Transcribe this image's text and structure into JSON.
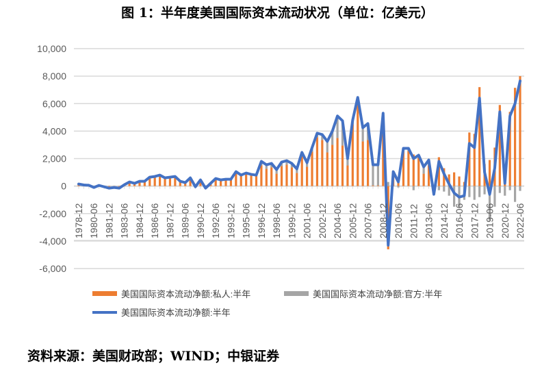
{
  "chart_data": {
    "type": "bar",
    "title": "图 1：半年度美国国际资本流动状况（单位：亿美元）",
    "xlabel": "",
    "ylabel": "",
    "ylim": [
      -6000,
      10000
    ],
    "yticks": [
      "10,000",
      "8,000",
      "6,000",
      "4,000",
      "2,000",
      "0",
      "-2,000",
      "-4,000",
      "-6,000"
    ],
    "ytick_values": [
      10000,
      8000,
      6000,
      4000,
      2000,
      0,
      -2000,
      -4000,
      -6000
    ],
    "grid": true,
    "legend_position": "bottom",
    "xtick_labels": [
      "1978-12",
      "1980-06",
      "1981-12",
      "1983-06",
      "1984-12",
      "1986-06",
      "1987-12",
      "1989-06",
      "1990-12",
      "1992-06",
      "1993-12",
      "1995-06",
      "1996-12",
      "1998-06",
      "1999-12",
      "2001-06",
      "2002-12",
      "2004-06",
      "2005-12",
      "2007-06",
      "2008-12",
      "2010-06",
      "2011-12",
      "2013-06",
      "2014-12",
      "2016-06",
      "2017-12",
      "2019-06",
      "2020-12",
      "2022-06"
    ],
    "n_periods": 88,
    "series": [
      {
        "name": "美国国际资本流动净额:私人:半年",
        "type": "bar",
        "color": "#ED7D31",
        "values": [
          150,
          80,
          60,
          -100,
          50,
          -50,
          -150,
          -100,
          -150,
          100,
          300,
          200,
          300,
          300,
          600,
          650,
          750,
          550,
          600,
          650,
          300,
          200,
          550,
          -100,
          400,
          -200,
          150,
          500,
          400,
          450,
          450,
          1000,
          750,
          900,
          800,
          750,
          1500,
          1250,
          1350,
          900,
          1450,
          1550,
          1350,
          950,
          2150,
          1400,
          2500,
          3550,
          3350,
          2450,
          3000,
          3500,
          2950,
          1500,
          4500,
          6150,
          3250,
          3350,
          50,
          50,
          3800,
          -4600,
          850,
          400,
          2750,
          2550,
          2300,
          2050,
          900,
          1500,
          -400,
          2100,
          1300,
          850,
          1000,
          700,
          300,
          3900,
          3800,
          7200,
          1600,
          1900,
          2800,
          5900,
          900,
          5400,
          7150,
          8000
        ]
      },
      {
        "name": "美国国际资本流动净额:官方:半年",
        "type": "bar",
        "color": "#A5A5A5",
        "values": [
          0,
          0,
          0,
          0,
          0,
          0,
          0,
          0,
          0,
          0,
          0,
          0,
          50,
          50,
          50,
          50,
          50,
          50,
          50,
          50,
          50,
          50,
          50,
          50,
          50,
          50,
          50,
          50,
          50,
          50,
          50,
          50,
          50,
          50,
          50,
          50,
          300,
          300,
          300,
          300,
          300,
          300,
          300,
          300,
          300,
          300,
          300,
          300,
          400,
          800,
          1000,
          1600,
          1800,
          500,
          300,
          300,
          1000,
          1200,
          1500,
          1500,
          1500,
          300,
          200,
          -100,
          0,
          200,
          -300,
          200,
          500,
          400,
          -200,
          -300,
          -400,
          -700,
          -1500,
          -1500,
          -1000,
          -800,
          -1000,
          -800,
          -600,
          -2500,
          -1500,
          -500,
          -700,
          -300,
          -1150,
          -350
        ]
      },
      {
        "name": "美国国际资本流动净额:半年",
        "type": "line",
        "color": "#4472C4",
        "values": [
          150,
          80,
          60,
          -100,
          50,
          -50,
          -150,
          -100,
          -150,
          100,
          300,
          200,
          350,
          350,
          650,
          700,
          800,
          600,
          650,
          700,
          350,
          250,
          600,
          -50,
          450,
          -150,
          200,
          550,
          450,
          500,
          500,
          1050,
          800,
          950,
          850,
          800,
          1800,
          1550,
          1650,
          1200,
          1750,
          1850,
          1650,
          1250,
          2450,
          1700,
          2800,
          3850,
          3750,
          3250,
          4000,
          5100,
          4750,
          2000,
          4800,
          6450,
          4250,
          4550,
          1550,
          1550,
          5300,
          -4300,
          1050,
          300,
          2750,
          2750,
          2000,
          2250,
          1400,
          1900,
          -600,
          1800,
          900,
          150,
          -500,
          -800,
          -700,
          3100,
          2800,
          6400,
          1000,
          -600,
          1300,
          5400,
          200,
          5100,
          6000,
          7650
        ]
      }
    ]
  },
  "source": "资料来源：美国财政部；WIND；中银证券"
}
